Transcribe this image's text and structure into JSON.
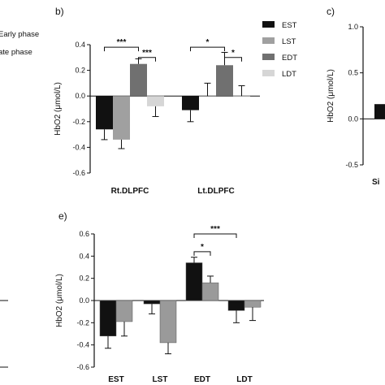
{
  "colors": {
    "EST": "#111111",
    "LST": "#a0a0a0",
    "EDT": "#707070",
    "LDT": "#d6d6d6",
    "e_first": "#111111",
    "e_second": "#9a9a9a"
  },
  "chart_data": [
    {
      "id": "b",
      "panel_label": "b)",
      "type": "bar",
      "ylabel": "HbO2 (μmol/L)",
      "ylim": [
        -0.6,
        0.4
      ],
      "yticks": [
        -0.6,
        -0.4,
        -0.2,
        0.0,
        0.2,
        0.4
      ],
      "ytick_labels": [
        "-0.6",
        "-0.4",
        "-0.2",
        "0.0",
        "0.2",
        "0.4"
      ],
      "groups": [
        {
          "label": "Rt.DLPFC",
          "values": [
            -0.26,
            -0.34,
            0.25,
            -0.08
          ],
          "errors": [
            0.08,
            0.07,
            0.04,
            0.08
          ]
        },
        {
          "label": "Lt.DLPFC",
          "values": [
            -0.11,
            0.0,
            0.24,
            0.0
          ],
          "errors": [
            0.09,
            0.1,
            0.1,
            0.08
          ]
        }
      ],
      "series": [
        "EST",
        "LST",
        "EDT",
        "LDT"
      ],
      "legend": {
        "placement": "right",
        "entries": [
          "EST",
          "LST",
          "EDT",
          "LDT"
        ]
      },
      "significance": [
        {
          "group": 0,
          "from": 0,
          "to": 2,
          "label": "***",
          "level": "high"
        },
        {
          "group": 0,
          "from": 2,
          "to": 3,
          "label": "***",
          "level": "low"
        },
        {
          "group": 1,
          "from": 0,
          "to": 2,
          "label": "*",
          "level": "high"
        },
        {
          "group": 1,
          "from": 2,
          "to": 3,
          "label": "*",
          "level": "low"
        }
      ]
    },
    {
      "id": "c",
      "panel_label": "c)",
      "type": "bar",
      "ylabel": "HbO2 (μmol/L)",
      "ylim": [
        -0.5,
        1.0
      ],
      "yticks": [
        -0.5,
        0.0,
        0.5,
        1.0
      ],
      "ytick_labels": [
        "-0.5",
        "0.0",
        "0.5",
        "1.0"
      ],
      "partial_category": "Si",
      "visible_bar_value": 0.16
    },
    {
      "id": "e",
      "panel_label": "e)",
      "type": "bar",
      "ylabel": "HbO2 (μmol/L)",
      "ylim": [
        -0.6,
        0.6
      ],
      "yticks": [
        -0.6,
        -0.4,
        -0.2,
        0.0,
        0.2,
        0.4,
        0.6
      ],
      "ytick_labels": [
        "-0.6",
        "-0.4",
        "-0.2",
        "0.0",
        "0.2",
        "0.4",
        "0.6"
      ],
      "categories": [
        "EST",
        "LST",
        "EDT",
        "LDT"
      ],
      "groups": [
        {
          "label": "EST",
          "values": [
            -0.32,
            -0.19
          ],
          "errors": [
            0.11,
            0.13
          ]
        },
        {
          "label": "LST",
          "values": [
            -0.03,
            -0.38
          ],
          "errors": [
            0.09,
            0.1
          ]
        },
        {
          "label": "EDT",
          "values": [
            0.34,
            0.16
          ],
          "errors": [
            0.05,
            0.06
          ]
        },
        {
          "label": "LDT",
          "values": [
            -0.09,
            -0.06
          ],
          "errors": [
            0.11,
            0.12
          ]
        }
      ],
      "significance": [
        {
          "from_group": 2,
          "from_bar": 0,
          "to_group": 2,
          "to_bar": 1,
          "label": "*",
          "level": "low"
        },
        {
          "from_group": 2,
          "from_bar": 0,
          "to_group": 3,
          "to_bar": 0,
          "label": "***",
          "level": "high"
        }
      ]
    }
  ],
  "legend_a": {
    "entries": [
      "Early phase",
      "Late phase"
    ],
    "visible_fragments": [
      "Early phase",
      "ate phase"
    ]
  }
}
